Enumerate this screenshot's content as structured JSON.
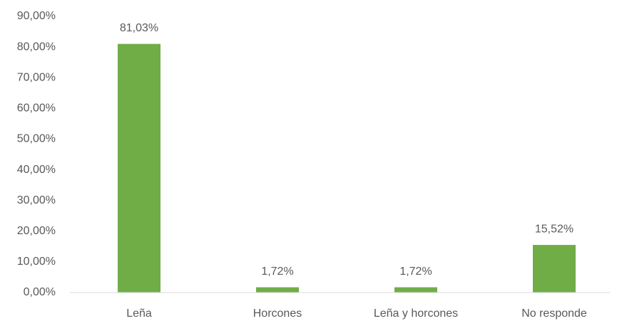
{
  "chart_data": {
    "type": "bar",
    "categories": [
      "Leña",
      "Horcones",
      "Leña y horcones",
      "No responde"
    ],
    "values": [
      81.03,
      1.72,
      1.72,
      15.52
    ],
    "value_labels": [
      "81,03%",
      "1,72%",
      "1,72%",
      "15,52%"
    ],
    "color": "#70ad47",
    "ylim": [
      0,
      90
    ],
    "yticks": [
      {
        "value": 0,
        "label": "0,00%"
      },
      {
        "value": 10,
        "label": "10,00%"
      },
      {
        "value": 20,
        "label": "20,00%"
      },
      {
        "value": 30,
        "label": "30,00%"
      },
      {
        "value": 40,
        "label": "40,00%"
      },
      {
        "value": 50,
        "label": "50,00%"
      },
      {
        "value": 60,
        "label": "60,00%"
      },
      {
        "value": 70,
        "label": "70,00%"
      },
      {
        "value": 80,
        "label": "80,00%"
      },
      {
        "value": 90,
        "label": "90,00%"
      }
    ],
    "grid": false
  }
}
